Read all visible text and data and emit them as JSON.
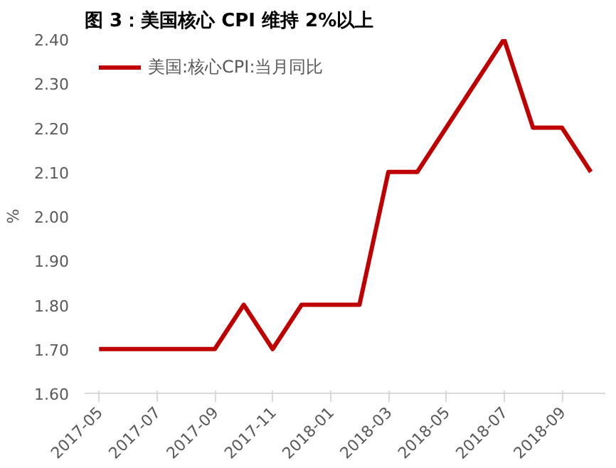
{
  "chart_data": {
    "type": "line",
    "title": "图 3：美国核心 CPI 维持 2%以上",
    "ylabel": "%",
    "categories": [
      "2017-05",
      null,
      "2017-07",
      null,
      "2017-09",
      null,
      "2017-11",
      null,
      "2018-01",
      null,
      "2018-03",
      null,
      "2018-05",
      null,
      "2018-07",
      null,
      "2018-09",
      null
    ],
    "series": [
      {
        "name": "美国:核心CPI:当月同比",
        "color": "#c00000",
        "values": [
          1.7,
          1.7,
          1.7,
          1.7,
          1.7,
          1.8,
          1.7,
          1.8,
          1.8,
          1.8,
          2.1,
          2.1,
          2.2,
          2.3,
          2.4,
          2.2,
          2.2,
          2.1
        ]
      }
    ],
    "ylim": [
      1.6,
      2.4
    ],
    "yticks": [
      {
        "value": 1.6,
        "label": "1.60"
      },
      {
        "value": 1.7,
        "label": "1.70"
      },
      {
        "value": 1.8,
        "label": "1.80"
      },
      {
        "value": 1.9,
        "label": "1.90"
      },
      {
        "value": 2.0,
        "label": "2.00"
      },
      {
        "value": 2.1,
        "label": "2.10"
      },
      {
        "value": 2.2,
        "label": "2.20"
      },
      {
        "value": 2.3,
        "label": "2.30"
      },
      {
        "value": 2.4,
        "label": "2.40"
      }
    ],
    "legend": "top left",
    "grid": false,
    "marker": "none",
    "line_style": "solid"
  }
}
